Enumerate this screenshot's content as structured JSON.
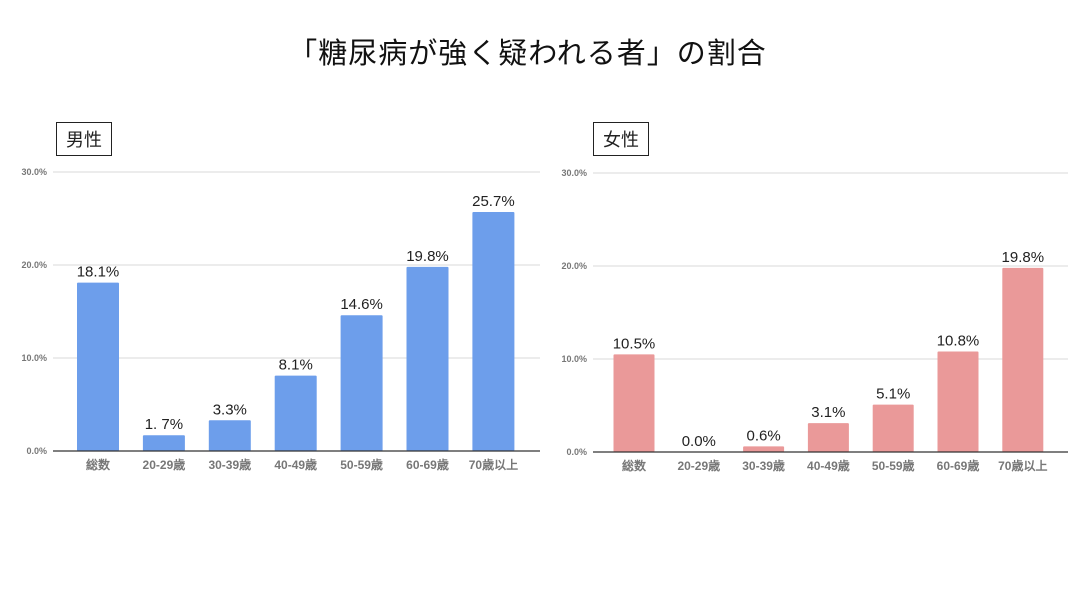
{
  "title": "「糖尿病が強く疑われる者」の割合",
  "chart_data": [
    {
      "type": "bar",
      "panel": "男性",
      "title": "男性",
      "categories": [
        "総数",
        "20-29歳",
        "30-39歳",
        "40-49歳",
        "50-59歳",
        "60-69歳",
        "70歳以上"
      ],
      "values": [
        18.1,
        1.7,
        3.3,
        8.1,
        14.6,
        19.8,
        25.7
      ],
      "data_labels": [
        "18.1%",
        "1. 7%",
        "3.3%",
        "8.1%",
        "14.6%",
        "19.8%",
        "25.7%"
      ],
      "yticks": [
        "0.0%",
        "10.0%",
        "20.0%",
        "30.0%"
      ],
      "ylim": [
        0,
        30
      ],
      "grid": true,
      "color": "#6d9eeb",
      "xlabel": "",
      "ylabel": ""
    },
    {
      "type": "bar",
      "panel": "女性",
      "title": "女性",
      "categories": [
        "総数",
        "20-29歳",
        "30-39歳",
        "40-49歳",
        "50-59歳",
        "60-69歳",
        "70歳以上"
      ],
      "values": [
        10.5,
        0.0,
        0.6,
        3.1,
        5.1,
        10.8,
        19.8
      ],
      "data_labels": [
        "10.5%",
        "0.0%",
        "0.6%",
        "3.1%",
        "5.1%",
        "10.8%",
        "19.8%"
      ],
      "yticks": [
        "0.0%",
        "10.0%",
        "20.0%",
        "30.0%"
      ],
      "ylim": [
        0,
        30
      ],
      "grid": true,
      "color": "#ea9999",
      "xlabel": "",
      "ylabel": ""
    }
  ]
}
